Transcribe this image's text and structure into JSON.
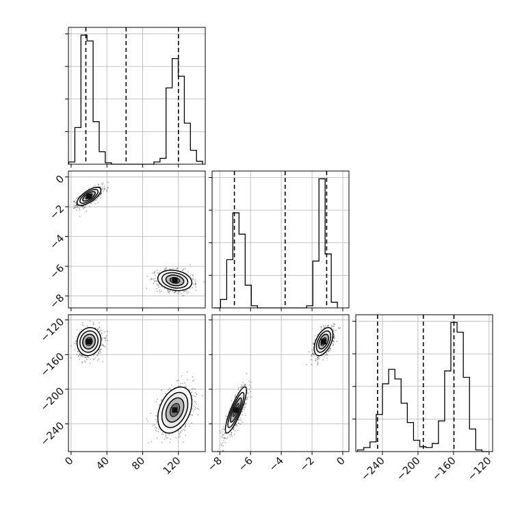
{
  "chart_data": {
    "type": "corner",
    "parameters": [
      {
        "name": "",
        "xlim": [
          -3,
          150
        ],
        "ticks": [
          0,
          40,
          80,
          120
        ],
        "tick_labels": [
          "0",
          "40",
          "80",
          "120"
        ],
        "quantiles": [
          16.5,
          61.5,
          120.0
        ],
        "hist": {
          "bins": [
            -2.6,
            4.2,
            11.0,
            17.8,
            24.6,
            31.4,
            38.2,
            45.0,
            51.8,
            58.6,
            65.4,
            72.2,
            79.0,
            85.8,
            92.6,
            99.4,
            106.2,
            113.0,
            119.8,
            126.6,
            133.4,
            140.2,
            147.0
          ],
          "counts": [
            0.015,
            0.25,
            0.88,
            0.84,
            0.29,
            0.085,
            0.01,
            0.0,
            0.0,
            0.0,
            0.0,
            0.0,
            0.0,
            0.0,
            0.015,
            0.04,
            0.52,
            0.72,
            0.6,
            0.28,
            0.095,
            0.02
          ]
        }
      },
      {
        "name": "",
        "xlim": [
          -8.5,
          0.4
        ],
        "ticks": [
          -8,
          -6,
          -4,
          -2,
          0
        ],
        "tick_labels": [
          "−8",
          "−6",
          "−4",
          "−2",
          "0"
        ],
        "quantiles": [
          -7.05,
          -3.75,
          -1.05
        ],
        "hist": {
          "bins": [
            -8.35,
            -7.95,
            -7.55,
            -7.15,
            -6.75,
            -6.35,
            -5.95,
            -5.55,
            -5.15,
            -4.75,
            -4.35,
            -3.95,
            -3.55,
            -3.15,
            -2.75,
            -2.35,
            -1.95,
            -1.55,
            -1.15,
            -0.75,
            -0.35
          ],
          "counts": [
            0.0,
            0.06,
            0.34,
            0.67,
            0.52,
            0.16,
            0.015,
            0.0,
            0.0,
            0.0,
            0.0,
            0.0,
            0.0,
            0.0,
            0.0,
            0.015,
            0.33,
            0.91,
            0.38,
            0.04
          ]
        }
      },
      {
        "name": "",
        "xlim": [
          -270,
          -116
        ],
        "ticks": [
          -240,
          -200,
          -160,
          -120
        ],
        "tick_labels": [
          "−240",
          "−200",
          "−160",
          "−120"
        ],
        "quantiles": [
          -245.5,
          -194.0,
          -159.5
        ],
        "hist": {
          "bins": [
            -268,
            -261,
            -254,
            -247,
            -240,
            -233,
            -226,
            -219,
            -212,
            -205,
            -198,
            -191,
            -184,
            -177,
            -170,
            -163,
            -156,
            -149,
            -142,
            -135,
            -128,
            -121
          ],
          "counts": [
            0.01,
            0.025,
            0.06,
            0.23,
            0.42,
            0.51,
            0.45,
            0.3,
            0.18,
            0.07,
            0.03,
            0.025,
            0.05,
            0.19,
            0.5,
            0.8,
            0.74,
            0.46,
            0.14,
            0.01,
            0.0
          ]
        }
      }
    ],
    "panels_2d": [
      {
        "row": 1,
        "col": 0,
        "ylim": [
          -8.8,
          0.4
        ],
        "yticks": [
          0,
          -2,
          -4,
          -6,
          -8
        ],
        "ytick_labels": [
          "0",
          "−2",
          "−4",
          "−6",
          "−8"
        ],
        "clusters": [
          {
            "mean_x": 20.0,
            "mean_y": -1.3,
            "sd_x": 7.0,
            "sd_y": 0.32,
            "rho": 0.7,
            "weight": 0.5
          },
          {
            "mean_x": 116.0,
            "mean_y": -6.95,
            "sd_x": 10.0,
            "sd_y": 0.36,
            "rho": -0.2,
            "weight": 0.5
          }
        ]
      },
      {
        "row": 2,
        "col": 0,
        "ylim": [
          -272,
          -114
        ],
        "yticks": [
          -120,
          -160,
          -200,
          -240
        ],
        "ytick_labels": [
          "−120",
          "−160",
          "−200",
          "−240"
        ],
        "clusters": [
          {
            "mean_x": 20.0,
            "mean_y": -145.0,
            "sd_x": 7.0,
            "sd_y": 8.5,
            "rho": 0.1,
            "weight": 0.5
          },
          {
            "mean_x": 116.0,
            "mean_y": -224.0,
            "sd_x": 10.0,
            "sd_y": 14.0,
            "rho": 0.35,
            "weight": 0.5
          }
        ]
      },
      {
        "row": 2,
        "col": 1,
        "ylim": [
          -272,
          -114
        ],
        "yticks": [
          -120,
          -160,
          -200,
          -240
        ],
        "ytick_labels": [
          "−120",
          "−160",
          "−200",
          "−240"
        ],
        "clusters": [
          {
            "mean_x": -6.95,
            "mean_y": -224.0,
            "sd_x": 0.36,
            "sd_y": 14.0,
            "rho": 0.85,
            "weight": 0.5
          },
          {
            "mean_x": -1.25,
            "mean_y": -145.0,
            "sd_x": 0.32,
            "sd_y": 8.5,
            "rho": 0.5,
            "weight": 0.5
          }
        ]
      }
    ],
    "grid": true,
    "hist_color": "#000000",
    "quantile_style": "dashed"
  }
}
